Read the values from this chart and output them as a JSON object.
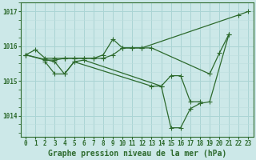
{
  "series": [
    {
      "x": [
        0,
        1,
        2,
        3,
        4,
        5,
        6,
        7,
        8,
        9,
        10,
        11,
        12,
        22,
        23
      ],
      "y": [
        1015.75,
        1015.9,
        1015.65,
        1015.65,
        1015.65,
        1015.65,
        1015.65,
        1015.65,
        1015.75,
        1016.2,
        1015.95,
        1015.95,
        1015.95,
        1016.9,
        1017.0
      ]
    },
    {
      "x": [
        0,
        2,
        3,
        4,
        5,
        6,
        7,
        8,
        9,
        10,
        11,
        12,
        13,
        19,
        20,
        21
      ],
      "y": [
        1015.75,
        1015.6,
        1015.6,
        1015.65,
        1015.65,
        1015.65,
        1015.65,
        1015.65,
        1015.75,
        1015.95,
        1015.95,
        1015.95,
        1015.95,
        1015.2,
        1015.8,
        1016.35
      ]
    },
    {
      "x": [
        0,
        3,
        4,
        5,
        13,
        14,
        15,
        16,
        17,
        18,
        19,
        21
      ],
      "y": [
        1015.75,
        1015.55,
        1015.2,
        1015.55,
        1014.85,
        1014.85,
        1013.65,
        1013.65,
        1014.2,
        1014.35,
        1014.4,
        1016.35
      ]
    },
    {
      "x": [
        2,
        3,
        4,
        5,
        6,
        14,
        15,
        16,
        17,
        18
      ],
      "y": [
        1015.55,
        1015.2,
        1015.2,
        1015.55,
        1015.6,
        1014.85,
        1015.15,
        1015.15,
        1014.4,
        1014.4
      ]
    }
  ],
  "line_color": "#2d6a2d",
  "marker": "+",
  "marker_size": 4,
  "bg_color": "#cce8e8",
  "grid_color_major": "#aad4d4",
  "grid_color_minor": "#bcdede",
  "axis_color": "#2d6a2d",
  "xlabel": "Graphe pression niveau de la mer (hPa)",
  "ylabel_ticks": [
    1014,
    1015,
    1016,
    1017
  ],
  "xtick_labels": [
    "0",
    "1",
    "2",
    "3",
    "4",
    "5",
    "6",
    "7",
    "8",
    "9",
    "10",
    "11",
    "12",
    "13",
    "14",
    "15",
    "16",
    "17",
    "18",
    "19",
    "20",
    "21",
    "22",
    "23"
  ],
  "xlim": [
    -0.5,
    23.5
  ],
  "ylim": [
    1013.4,
    1017.25
  ],
  "xlabel_fontsize": 7,
  "tick_fontsize": 5.5
}
